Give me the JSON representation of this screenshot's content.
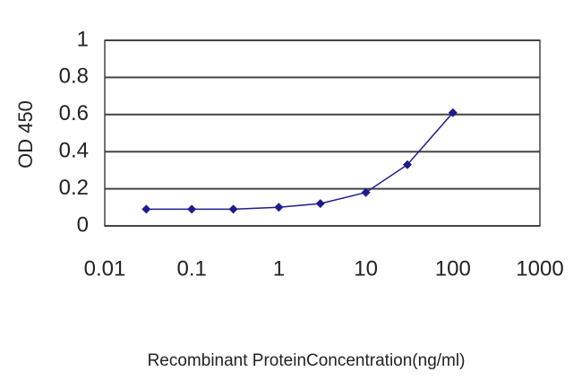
{
  "chart_data": {
    "type": "line",
    "xscale": "log",
    "x_label": "Recombinant ProteinConcentration(ng/ml)",
    "y_label": "OD 450",
    "x": [
      0.03,
      0.1,
      0.3,
      1,
      3,
      10,
      30,
      100
    ],
    "series": [
      {
        "color": "#1c1c8c",
        "values": [
          0.09,
          0.09,
          0.09,
          0.1,
          0.12,
          0.18,
          0.33,
          0.61
        ]
      }
    ],
    "xlim": [
      0.01,
      1000
    ],
    "xticks": [
      0.01,
      0.1,
      1,
      10,
      100,
      1000
    ],
    "ylim": [
      0,
      1
    ],
    "yticks": [
      0,
      0.2,
      0.4,
      0.6,
      0.8,
      1
    ],
    "grid": true
  }
}
